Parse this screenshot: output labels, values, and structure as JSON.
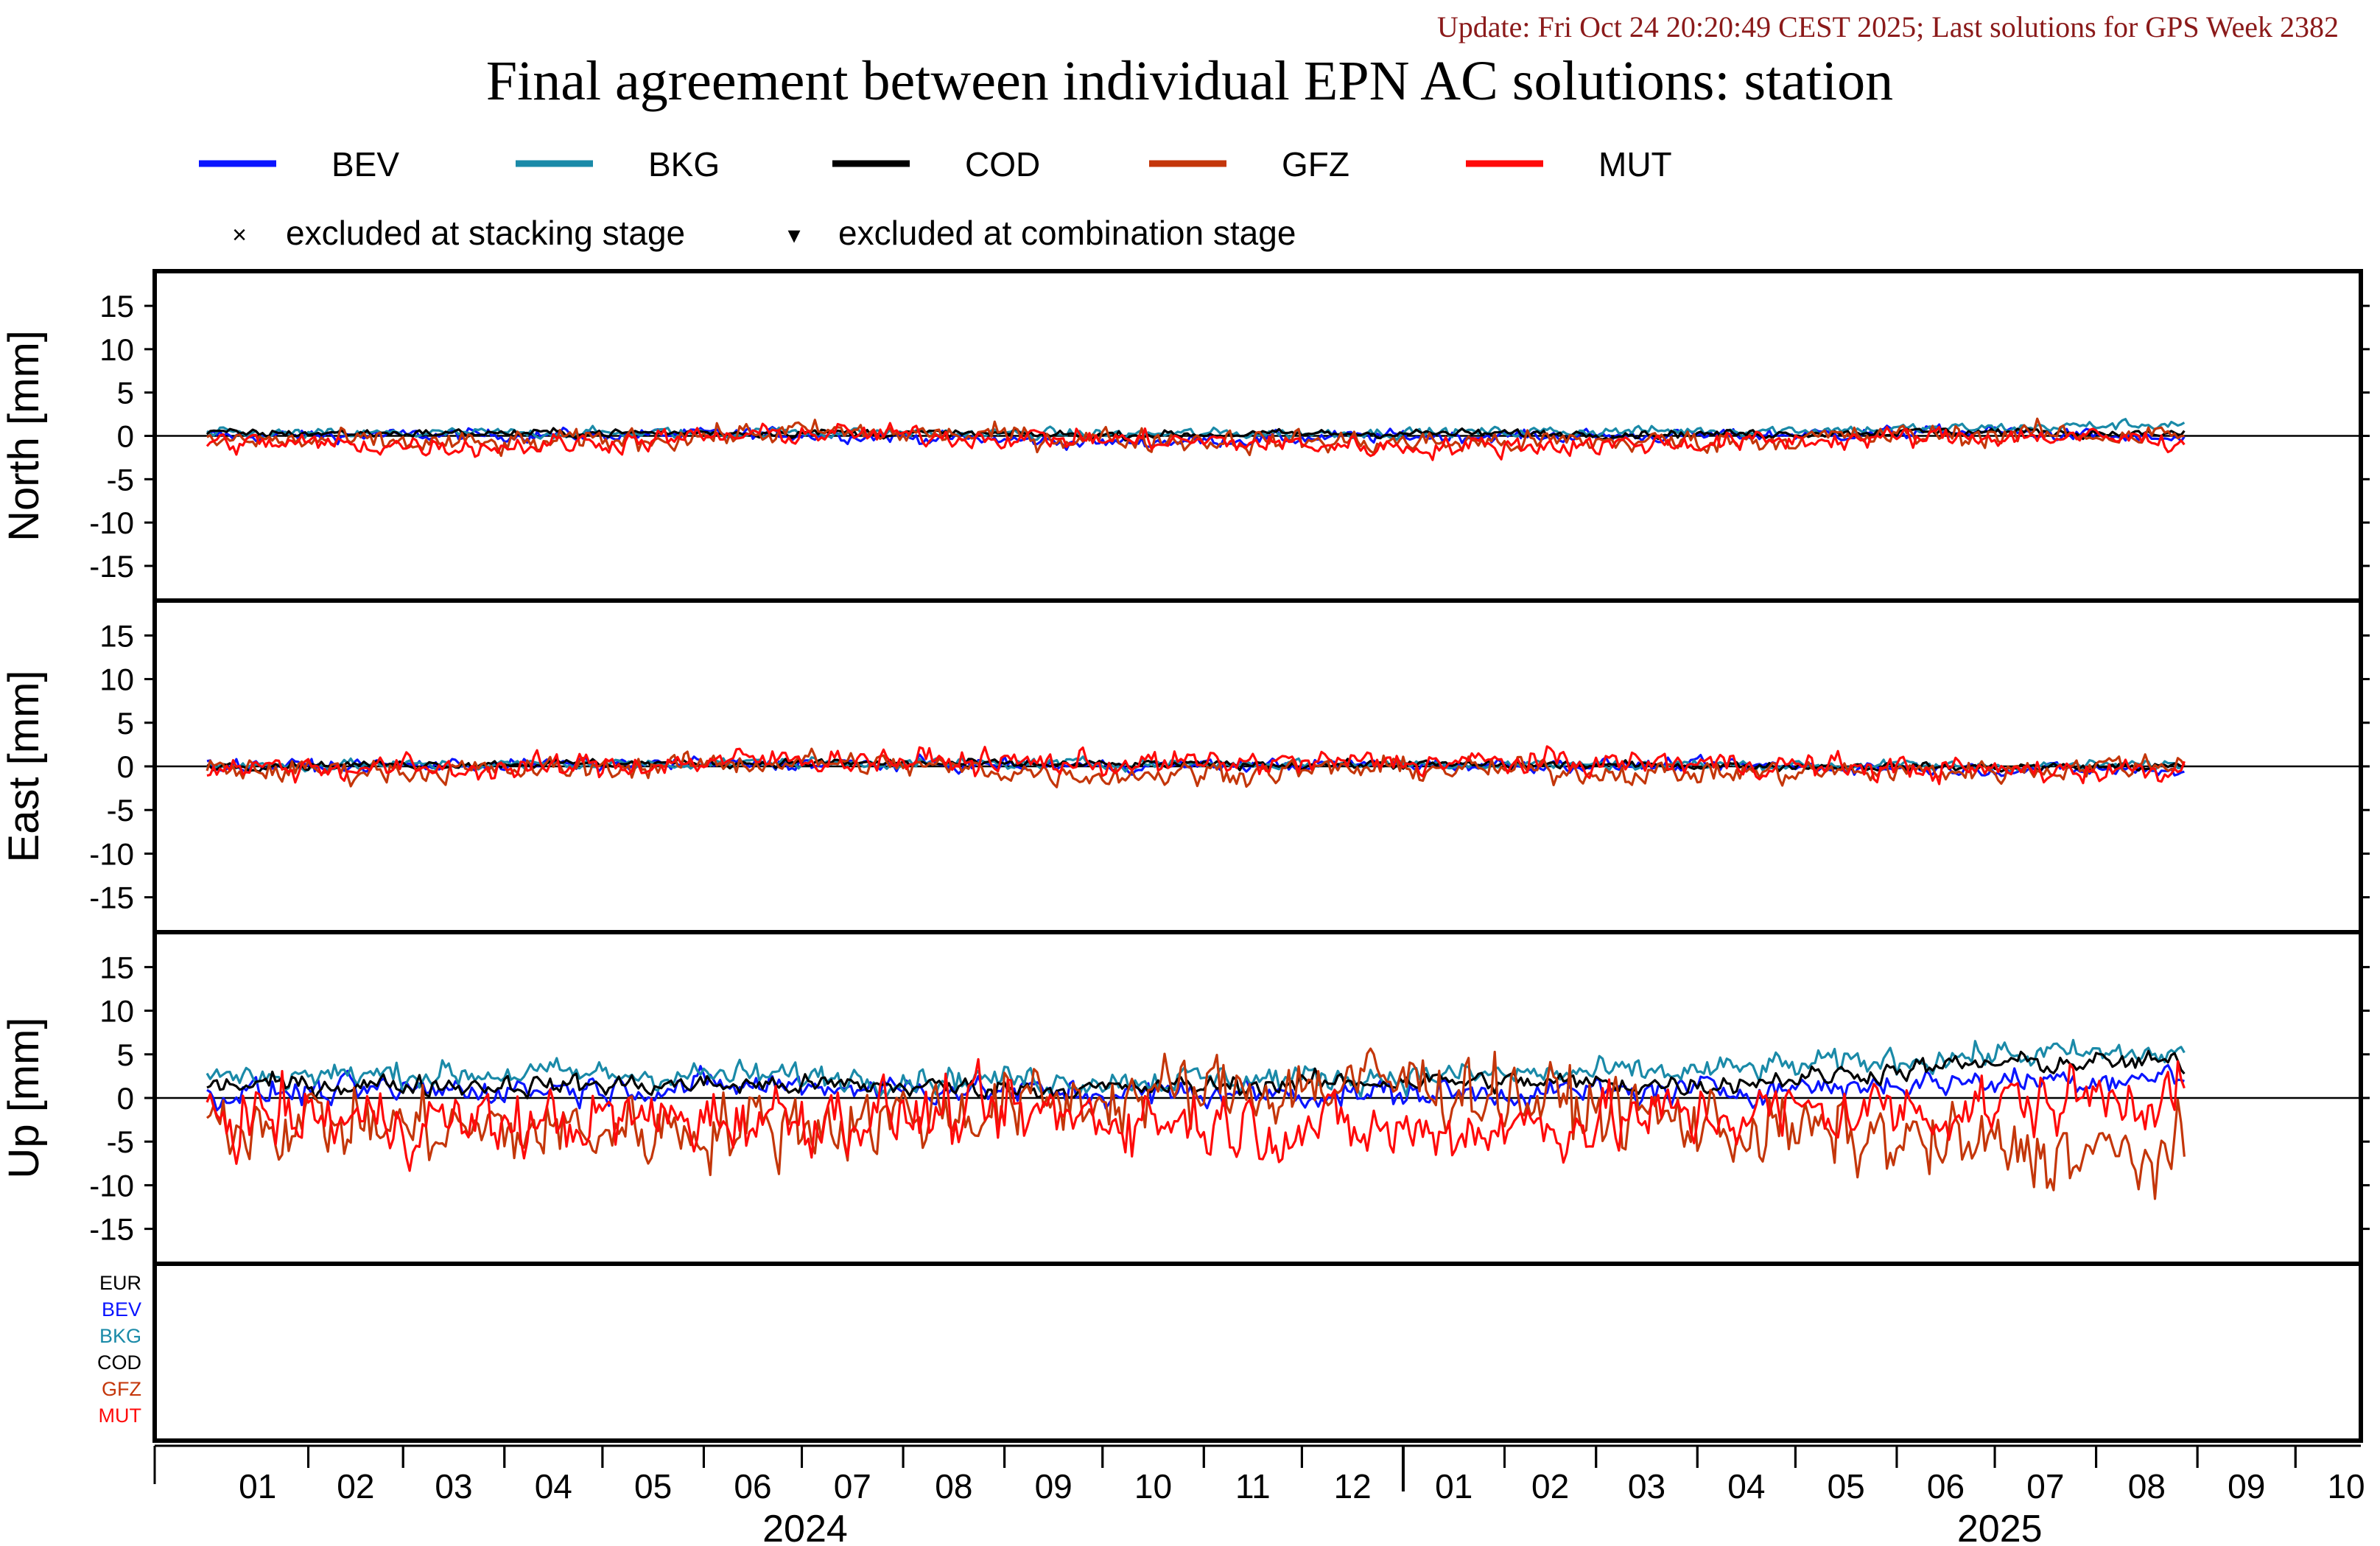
{
  "update_text": "Update: Fri Oct 24 20:20:49 CEST 2025; Last solutions for GPS Week 2382",
  "title": "Final agreement between individual EPN AC solutions: station",
  "colors": {
    "BEV": "#0a14ff",
    "BKG": "#1a8aa8",
    "COD": "#000000",
    "GFZ": "#c4360a",
    "MUT": "#ff0a0a",
    "EUR": "#000000",
    "update": "#8b1a1a"
  },
  "legend": {
    "series": [
      "BEV",
      "BKG",
      "COD",
      "GFZ",
      "MUT"
    ],
    "markers": [
      {
        "symbol": "×",
        "label": "excluded at stacking stage"
      },
      {
        "symbol": "▾",
        "label": "excluded at combination stage"
      }
    ]
  },
  "bottom_panel_labels": [
    "EUR",
    "BEV",
    "BKG",
    "COD",
    "GFZ",
    "MUT"
  ],
  "xaxis": {
    "month_labels": [
      "01",
      "02",
      "03",
      "04",
      "05",
      "06",
      "07",
      "08",
      "09",
      "10",
      "11",
      "12",
      "01",
      "02",
      "03",
      "04",
      "05",
      "06",
      "07",
      "08",
      "09",
      "10"
    ],
    "year_labels": [
      "2024",
      "2025"
    ]
  },
  "chart_data": [
    {
      "type": "line",
      "ylabel": "North [mm]",
      "ylim": [
        -19,
        19
      ],
      "yticks": [
        -15,
        -10,
        -5,
        0,
        5,
        10,
        15
      ],
      "x": [
        "2024-01-01",
        "2024-04-01",
        "2024-07-01",
        "2024-10-01",
        "2025-01-01",
        "2025-04-01",
        "2025-07-01",
        "2025-08-28"
      ],
      "series": [
        {
          "name": "BEV",
          "values": [
            0.0,
            0.1,
            0.2,
            -0.8,
            0.0,
            0.0,
            0.5,
            -0.5
          ]
        },
        {
          "name": "BKG",
          "values": [
            0.2,
            0.3,
            0.4,
            0.2,
            0.4,
            0.6,
            0.9,
            1.4
          ]
        },
        {
          "name": "COD",
          "values": [
            0.3,
            0.3,
            0.4,
            0.1,
            0.3,
            0.2,
            0.5,
            0.2
          ]
        },
        {
          "name": "GFZ",
          "values": [
            -0.5,
            -1.0,
            0.5,
            -0.3,
            -0.8,
            -0.6,
            0.2,
            0.1
          ]
        },
        {
          "name": "MUT",
          "values": [
            -0.8,
            -1.2,
            0.3,
            -0.4,
            -1.3,
            -0.8,
            0.0,
            -0.5
          ]
        }
      ]
    },
    {
      "type": "line",
      "ylabel": "East [mm]",
      "ylim": [
        -19,
        19
      ],
      "yticks": [
        -15,
        -10,
        -5,
        0,
        5,
        10,
        15
      ],
      "x": [
        "2024-01-01",
        "2024-04-01",
        "2024-07-01",
        "2024-10-01",
        "2025-01-01",
        "2025-04-01",
        "2025-07-01",
        "2025-08-28"
      ],
      "series": [
        {
          "name": "BEV",
          "values": [
            0.0,
            0.2,
            0.3,
            0.1,
            0.2,
            0.1,
            -0.3,
            -0.5
          ]
        },
        {
          "name": "BKG",
          "values": [
            0.1,
            0.2,
            0.4,
            0.3,
            0.3,
            0.2,
            0.0,
            0.2
          ]
        },
        {
          "name": "COD",
          "values": [
            0.1,
            0.3,
            0.4,
            0.2,
            0.2,
            0.1,
            -0.1,
            0.0
          ]
        },
        {
          "name": "GFZ",
          "values": [
            -0.4,
            -0.5,
            0.6,
            -1.0,
            -0.2,
            -0.8,
            -0.5,
            0.4
          ]
        },
        {
          "name": "MUT",
          "values": [
            0.0,
            -0.3,
            0.9,
            0.3,
            0.5,
            0.4,
            -0.5,
            -0.3
          ]
        }
      ]
    },
    {
      "type": "line",
      "ylabel": "Up [mm]",
      "ylim": [
        -19,
        19
      ],
      "yticks": [
        -15,
        -10,
        -5,
        0,
        5,
        10,
        15
      ],
      "x": [
        "2024-01-01",
        "2024-04-01",
        "2024-07-01",
        "2024-10-01",
        "2025-01-01",
        "2025-04-01",
        "2025-07-01",
        "2025-08-28"
      ],
      "series": [
        {
          "name": "BEV",
          "values": [
            0.5,
            1.0,
            1.5,
            0.5,
            0.5,
            0.8,
            2.0,
            2.5
          ]
        },
        {
          "name": "BKG",
          "values": [
            2.5,
            2.8,
            2.5,
            2.0,
            2.5,
            3.0,
            5.0,
            5.0
          ]
        },
        {
          "name": "COD",
          "values": [
            1.5,
            1.5,
            1.5,
            1.0,
            2.0,
            1.5,
            4.0,
            4.0
          ]
        },
        {
          "name": "GFZ",
          "values": [
            -2.0,
            -4.0,
            -3.0,
            0.0,
            2.0,
            -3.0,
            -6.0,
            -7.0
          ]
        },
        {
          "name": "MUT",
          "values": [
            -2.0,
            -3.0,
            -2.0,
            -2.0,
            -4.0,
            -2.0,
            -1.0,
            1.0
          ]
        }
      ]
    }
  ]
}
